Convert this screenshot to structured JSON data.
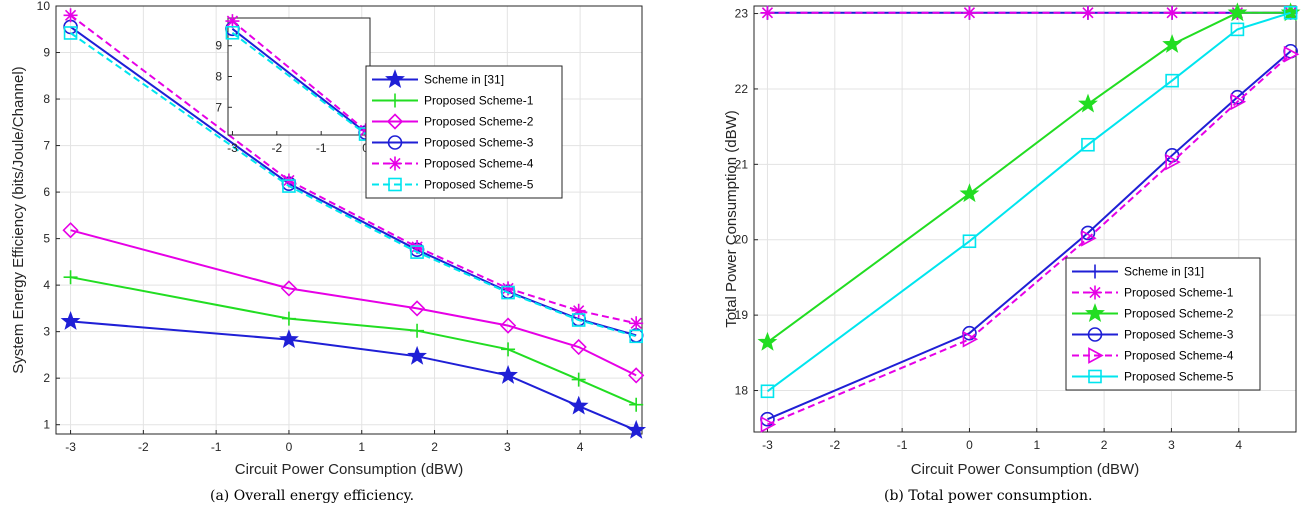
{
  "chart_data": [
    {
      "type": "line",
      "caption": "(a) Overall energy efficiency.",
      "xlabel": "Circuit Power Consumption (dBW)",
      "ylabel": "System Energy Efficiency (bits/Joule/Channel)",
      "xlim": [
        -3.2,
        4.85
      ],
      "ylim": [
        0.8,
        10.0
      ],
      "xticks": [
        -3,
        -2,
        -1,
        0,
        1,
        2,
        3,
        4
      ],
      "yticks": [
        1,
        2,
        3,
        4,
        5,
        6,
        7,
        8,
        9,
        10
      ],
      "grid": true,
      "legend_position": "top-right",
      "x": [
        -3,
        0,
        1.76,
        3.01,
        3.98,
        4.77
      ],
      "series": [
        {
          "name": "Scheme in [31]",
          "color": "#1f1fd6",
          "marker": "star",
          "dash": "solid",
          "values": [
            3.22,
            2.83,
            2.47,
            2.06,
            1.4,
            0.88
          ]
        },
        {
          "name": "Proposed Scheme-1",
          "color": "#22dd22",
          "marker": "plus",
          "dash": "solid",
          "values": [
            4.17,
            3.28,
            3.02,
            2.62,
            1.97,
            1.43
          ]
        },
        {
          "name": "Proposed Scheme-2",
          "color": "#e600e6",
          "marker": "diamond",
          "dash": "solid",
          "values": [
            5.18,
            3.93,
            3.5,
            3.13,
            2.67,
            2.06
          ]
        },
        {
          "name": "Proposed Scheme-3",
          "color": "#1f1fd6",
          "marker": "circle",
          "dash": "solid",
          "values": [
            9.55,
            6.18,
            4.76,
            3.86,
            3.27,
            2.92
          ]
        },
        {
          "name": "Proposed Scheme-4",
          "color": "#e600e6",
          "marker": "asterisk",
          "dash": "dashed",
          "values": [
            9.8,
            6.25,
            4.82,
            3.93,
            3.45,
            3.18
          ]
        },
        {
          "name": "Proposed Scheme-5",
          "color": "#00e5ee",
          "marker": "square",
          "dash": "dashed",
          "values": [
            9.42,
            6.13,
            4.71,
            3.84,
            3.25,
            2.9
          ]
        }
      ],
      "inset": {
        "xlim": [
          -3.1,
          0.1
        ],
        "ylim": [
          6.1,
          9.9
        ],
        "xticks": [
          -3,
          -2,
          -1,
          0
        ],
        "yticks": [
          7,
          8,
          9
        ],
        "x": [
          -3,
          0
        ],
        "series_values": [
          [
            9.55,
            6.18
          ],
          [
            9.8,
            6.25
          ],
          [
            9.42,
            6.13
          ]
        ],
        "series_ref": [
          3,
          4,
          5
        ]
      }
    },
    {
      "type": "line",
      "caption": "(b) Total power consumption.",
      "xlabel": "Circuit Power Consumption (dBW)",
      "ylabel": "Total Power Consumption (dBW)",
      "xlim": [
        -3.2,
        4.85
      ],
      "ylim": [
        17.45,
        23.1
      ],
      "xticks": [
        -3,
        -2,
        -1,
        0,
        1,
        2,
        3,
        4
      ],
      "yticks": [
        18,
        19,
        20,
        21,
        22,
        23
      ],
      "grid": true,
      "legend_position": "bottom-right",
      "x": [
        -3,
        0,
        1.76,
        3.01,
        3.98,
        4.77
      ],
      "series": [
        {
          "name": "Scheme in [31]",
          "color": "#1f1fd6",
          "marker": "plus",
          "dash": "solid",
          "values": [
            23.01,
            23.01,
            23.01,
            23.01,
            23.01,
            23.01
          ]
        },
        {
          "name": "Proposed Scheme-1",
          "color": "#e600e6",
          "marker": "asterisk",
          "dash": "dashed",
          "values": [
            23.01,
            23.01,
            23.01,
            23.01,
            23.01,
            23.01
          ]
        },
        {
          "name": "Proposed Scheme-2",
          "color": "#22dd22",
          "marker": "star",
          "dash": "solid",
          "values": [
            18.64,
            20.61,
            21.8,
            22.59,
            23.01,
            23.01
          ]
        },
        {
          "name": "Proposed Scheme-3",
          "color": "#1f1fd6",
          "marker": "circle",
          "dash": "solid",
          "values": [
            17.62,
            18.76,
            20.09,
            21.12,
            21.89,
            22.5
          ]
        },
        {
          "name": "Proposed Scheme-4",
          "color": "#e600e6",
          "marker": "triangle-right",
          "dash": "dashed",
          "values": [
            17.55,
            18.68,
            20.02,
            21.03,
            21.83,
            22.46
          ]
        },
        {
          "name": "Proposed Scheme-5",
          "color": "#00e5ee",
          "marker": "square",
          "dash": "solid",
          "values": [
            17.99,
            19.98,
            21.26,
            22.11,
            22.79,
            23.01
          ]
        }
      ]
    }
  ]
}
